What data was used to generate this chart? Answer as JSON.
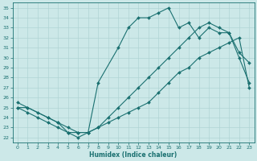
{
  "xlabel": "Humidex (Indice chaleur)",
  "bg_color": "#cce8e8",
  "line_color": "#1a7070",
  "grid_color": "#b0d4d4",
  "xlim": [
    -0.5,
    23.5
  ],
  "ylim": [
    21.5,
    35.5
  ],
  "yticks": [
    22,
    23,
    24,
    25,
    26,
    27,
    28,
    29,
    30,
    31,
    32,
    33,
    34,
    35
  ],
  "xticks": [
    0,
    1,
    2,
    3,
    4,
    5,
    6,
    7,
    8,
    9,
    10,
    11,
    12,
    13,
    14,
    15,
    16,
    17,
    18,
    19,
    20,
    21,
    22,
    23
  ],
  "lines": [
    {
      "x": [
        0,
        1,
        3,
        4,
        5,
        6,
        7,
        8,
        10,
        11,
        12,
        13,
        14,
        15,
        16,
        17,
        18,
        19,
        20,
        21,
        22,
        23
      ],
      "y": [
        25.0,
        25.0,
        24.0,
        23.5,
        22.5,
        22.0,
        22.5,
        27.5,
        31.0,
        33.0,
        34.0,
        34.0,
        34.5,
        35.0,
        33.0,
        33.5,
        32.0,
        33.0,
        32.5,
        32.5,
        30.0,
        27.5
      ]
    },
    {
      "x": [
        0,
        1,
        2,
        3,
        4,
        5,
        6,
        7,
        8,
        9,
        10,
        11,
        12,
        13,
        14,
        15,
        16,
        17,
        18,
        19,
        20,
        21,
        22,
        23
      ],
      "y": [
        25.5,
        25.0,
        24.5,
        24.0,
        23.5,
        23.0,
        22.5,
        22.5,
        23.0,
        24.0,
        25.0,
        26.0,
        27.0,
        28.0,
        29.0,
        30.0,
        31.0,
        32.0,
        33.0,
        33.5,
        33.0,
        32.5,
        30.5,
        29.5
      ]
    },
    {
      "x": [
        0,
        1,
        2,
        3,
        4,
        5,
        6,
        7,
        8,
        9,
        10,
        11,
        12,
        13,
        14,
        15,
        16,
        17,
        18,
        19,
        20,
        21,
        22,
        23
      ],
      "y": [
        25.0,
        24.5,
        24.0,
        23.5,
        23.0,
        22.5,
        22.5,
        22.5,
        23.0,
        23.5,
        24.0,
        24.5,
        25.0,
        25.5,
        26.5,
        27.5,
        28.5,
        29.0,
        30.0,
        30.5,
        31.0,
        31.5,
        32.0,
        27.0
      ]
    }
  ]
}
